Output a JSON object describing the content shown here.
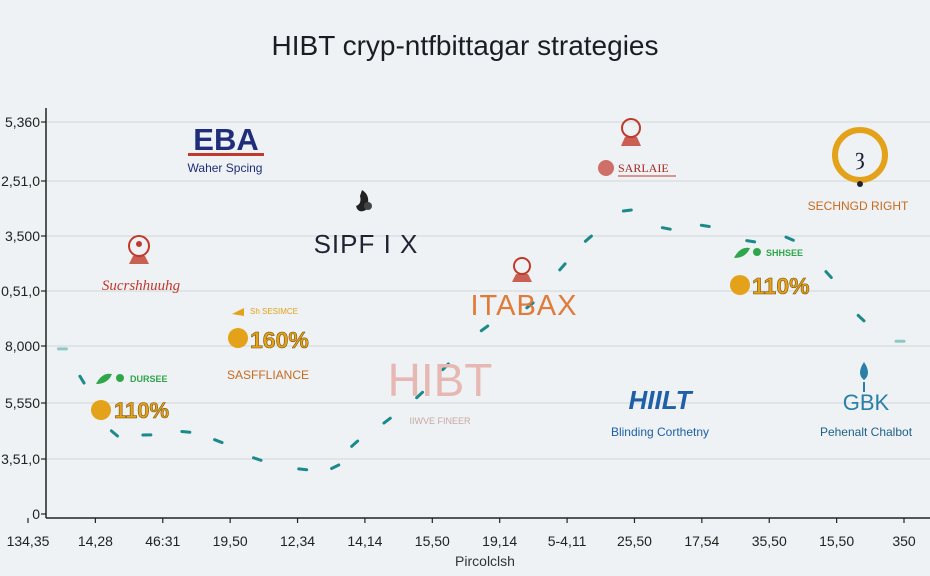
{
  "chart_data": {
    "type": "scatter",
    "title": "HIBT cryp-ntfbittagar strategies",
    "xlabel": "Pircolclsh",
    "ylabel": "",
    "x_tick_labels": [
      "134,35",
      "14,28",
      "46:31",
      "19,50",
      "12,34",
      "14,14",
      "15,50",
      "19,14",
      "5-4,11",
      "25,50",
      "17,54",
      "35,50",
      "15,50",
      "350"
    ],
    "y_tick_labels": [
      "5,360",
      "2,51,0",
      "3,500",
      "0,51,0",
      "8,000",
      "5,550",
      "3,51,0",
      "0"
    ],
    "ylim": [
      0,
      8
    ],
    "grid": true,
    "series": [
      {
        "values": [
          [
            0.1,
            3.3
          ],
          [
            0.4,
            2.7
          ],
          [
            0.9,
            1.65
          ],
          [
            1.4,
            1.62
          ],
          [
            2.0,
            1.68
          ],
          [
            2.5,
            1.5
          ],
          [
            3.1,
            1.15
          ],
          [
            3.8,
            0.95
          ],
          [
            4.3,
            1.0
          ],
          [
            4.6,
            1.45
          ],
          [
            5.1,
            1.9
          ],
          [
            5.6,
            2.4
          ],
          [
            6.0,
            2.95
          ],
          [
            6.6,
            3.7
          ],
          [
            7.3,
            4.15
          ],
          [
            7.8,
            4.9
          ],
          [
            8.2,
            5.45
          ],
          [
            8.8,
            6.0
          ],
          [
            9.4,
            5.65
          ],
          [
            10.0,
            5.7
          ],
          [
            10.7,
            5.4
          ],
          [
            11.3,
            5.45
          ],
          [
            11.9,
            4.75
          ],
          [
            12.4,
            3.9
          ],
          [
            13.0,
            3.45
          ]
        ]
      }
    ],
    "annotations": [
      {
        "id": "eba",
        "main": "EBA",
        "sub": "Waher Spcing",
        "color": "#1f2d7a"
      },
      {
        "id": "seal-left",
        "main": "Sucrshhuuhg",
        "color": "#c0392b"
      },
      {
        "id": "badge-left",
        "tag": "DURSEE",
        "pct": "110%"
      },
      {
        "id": "sipfix",
        "main": "SIPF I X"
      },
      {
        "id": "badge-mid",
        "tag": "Sh SESIMCE",
        "pct": "160%",
        "sub": "SASFFLIANCE"
      },
      {
        "id": "hibt",
        "main": "HIBT",
        "sub": "IIWVE FINEER"
      },
      {
        "id": "itabax",
        "main": "ITABAX"
      },
      {
        "id": "sarlaie",
        "main": "SARLAIE",
        "color": "#c0392b"
      },
      {
        "id": "hiilt",
        "main": "HIILT",
        "sub": "Blinding Corthetny"
      },
      {
        "id": "badge-right",
        "tag": "SHHSEE",
        "pct": "110%"
      },
      {
        "id": "sechngd",
        "main": "SECHNGD RIGHT"
      },
      {
        "id": "gbk",
        "main": "GBK",
        "sub": "Pehenalt Chalbot"
      }
    ],
    "colors": {
      "dash": "#1c8a8a",
      "dash_faint": "#8ec9c6",
      "grid": "#d3d7da",
      "axis": "#222222",
      "seal_red": "#c0392b",
      "gold": "#e3a21a",
      "green": "#2fa64a",
      "blue": "#1f5fa8",
      "teal": "#2a7fa8"
    }
  }
}
